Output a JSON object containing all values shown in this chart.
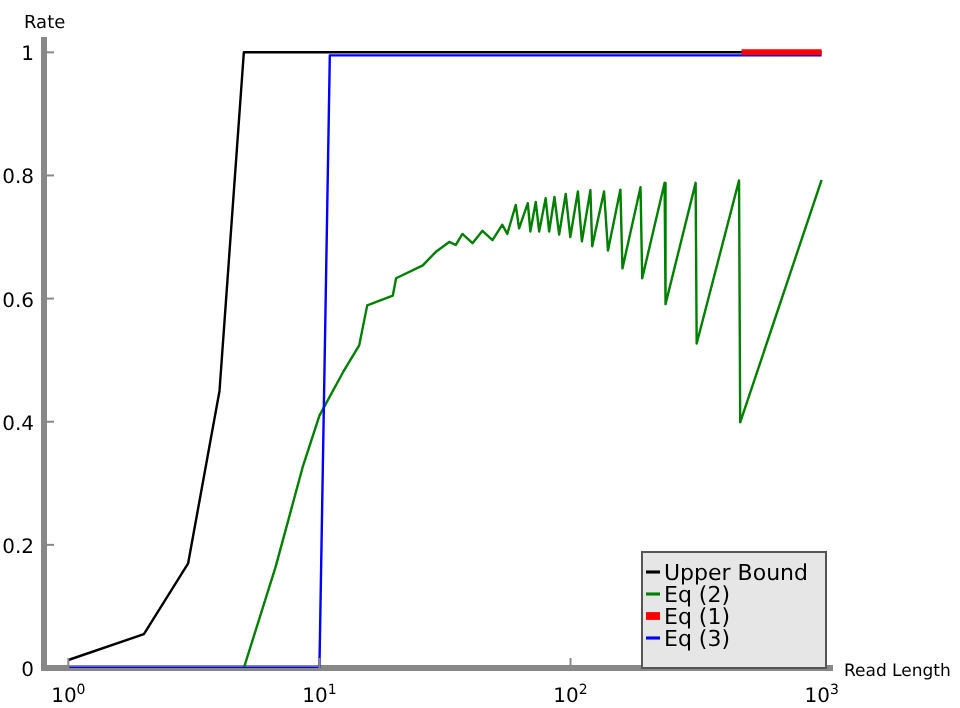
{
  "chart_data": {
    "type": "line",
    "xlabel": "Read Length",
    "ylabel": "Rate",
    "log": "x",
    "grid": false,
    "legend": "bottom right",
    "marker": "none",
    "line_style": "solid",
    "xlim": [
      0.8,
      1100
    ],
    "xticks": [
      {
        "value": 1,
        "label": "10$^{0}$"
      },
      {
        "value": 10,
        "label": "10$^{1}$"
      },
      {
        "value": 100,
        "label": "10$^{2}$"
      },
      {
        "value": 1000,
        "label": "10$^{3}$"
      }
    ],
    "ylim": [
      0,
      1.02
    ],
    "yticks": [
      0,
      0.2,
      0.4,
      0.6,
      0.8,
      1
    ],
    "series": [
      {
        "name": "Upper Bound",
        "color": "#000000",
        "x": [
          1,
          2,
          3,
          4,
          5,
          1000
        ],
        "values": [
          0.013,
          0.055,
          0.17,
          0.45,
          1,
          1
        ]
      },
      {
        "name": "Eq (2)",
        "color": "#008000",
        "x": [
          5,
          6.7,
          8.6,
          10,
          12.4,
          14.4,
          15.5,
          19.6,
          20.2,
          25.8,
          29.1,
          32.9,
          34.9,
          37.1,
          40.7,
          44.6,
          48.9,
          53.5,
          56,
          60.5,
          62.4,
          67.6,
          69.2,
          72.7,
          75,
          79.6,
          82.2,
          86.3,
          90.1,
          95.7,
          99.8,
          107,
          111,
          120,
          122,
          136,
          141,
          158,
          161,
          190,
          193,
          237,
          239,
          315,
          318,
          469,
          474,
          1000
        ],
        "values": [
          0,
          0.165,
          0.328,
          0.41,
          0.48,
          0.524,
          0.589,
          0.605,
          0.633,
          0.654,
          0.676,
          0.692,
          0.687,
          0.705,
          0.69,
          0.71,
          0.695,
          0.72,
          0.705,
          0.752,
          0.714,
          0.755,
          0.709,
          0.757,
          0.709,
          0.763,
          0.709,
          0.765,
          0.704,
          0.77,
          0.7,
          0.774,
          0.693,
          0.776,
          0.685,
          0.774,
          0.678,
          0.777,
          0.649,
          0.781,
          0.633,
          0.788,
          0.591,
          0.788,
          0.527,
          0.792,
          0.399,
          0.793
        ]
      },
      {
        "name": "Eq (1)",
        "color": "#ff0000",
        "x": [
          480,
          1000
        ],
        "values": [
          1,
          1
        ]
      },
      {
        "name": "Eq (3)",
        "color": "#0000ff",
        "x": [
          1,
          10,
          11,
          1000
        ],
        "values": [
          0,
          0,
          0.995,
          0.995
        ]
      }
    ]
  }
}
